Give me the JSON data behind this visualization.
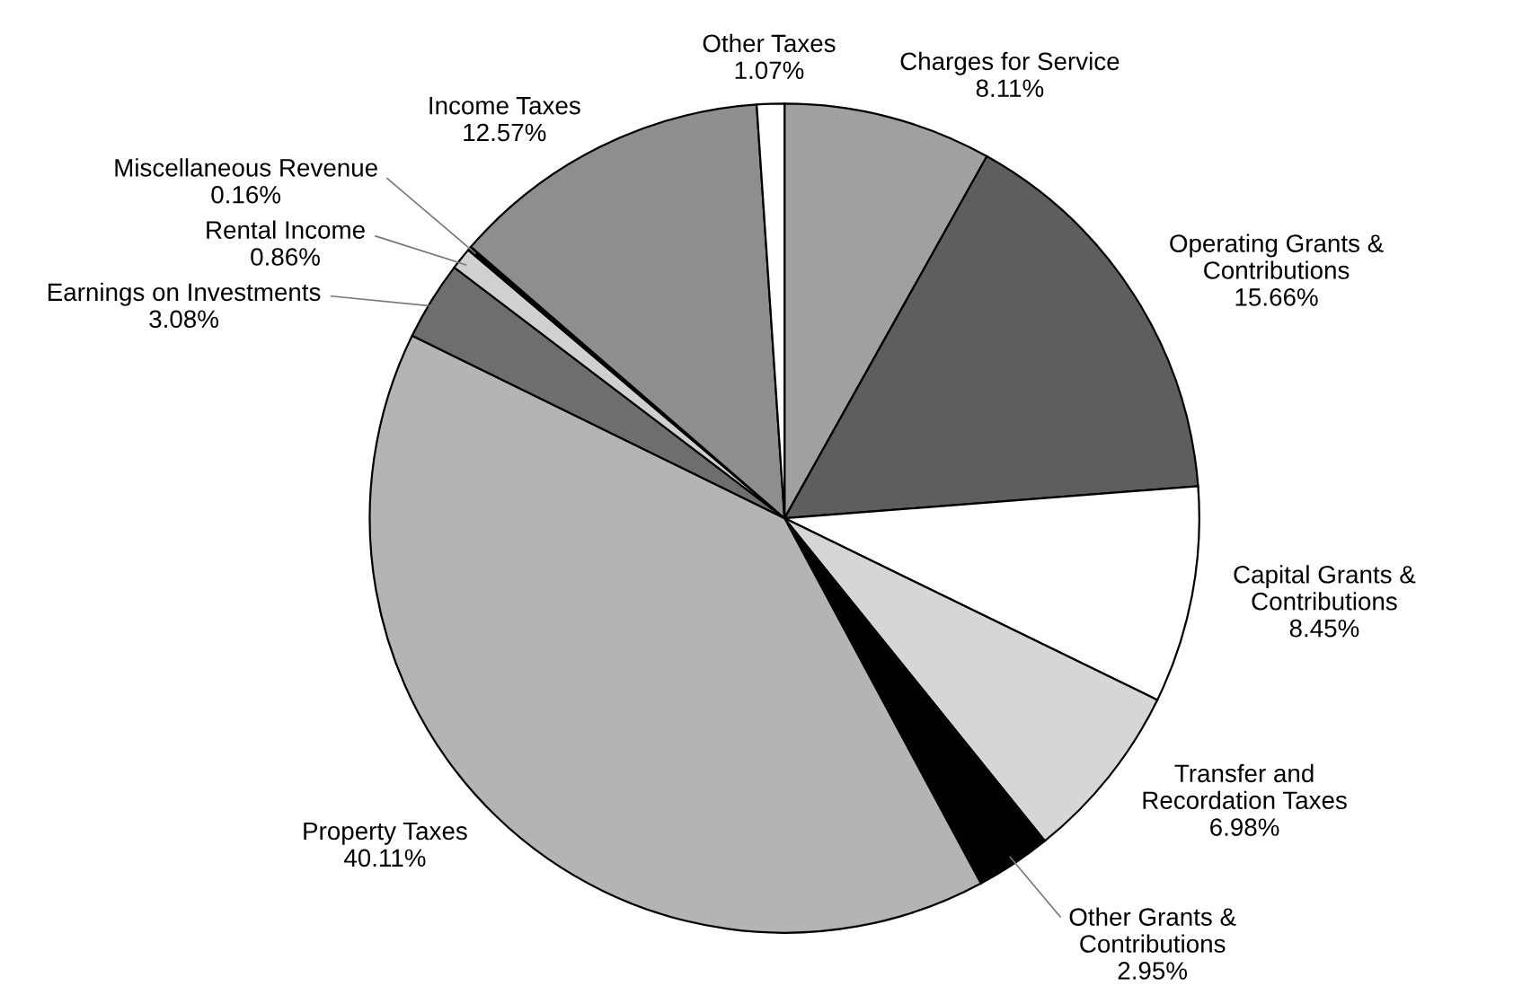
{
  "chart_data": {
    "type": "pie",
    "categories": [
      "Charges for Service",
      "Operating Grants & Contributions",
      "Capital Grants & Contributions",
      "Transfer and Recordation Taxes",
      "Other Grants & Contributions",
      "Property Taxes",
      "Earnings on Investments",
      "Rental Income",
      "Miscellaneous Revenue",
      "Income Taxes",
      "Other Taxes"
    ],
    "values": [
      8.11,
      15.66,
      8.45,
      6.98,
      2.95,
      40.11,
      3.08,
      0.86,
      0.16,
      12.57,
      1.07
    ],
    "value_labels": [
      "8.11%",
      "15.66%",
      "8.45%",
      "6.98%",
      "2.95%",
      "40.11%",
      "3.08%",
      "0.86%",
      "0.16%",
      "12.57%",
      "1.07%"
    ],
    "colors": [
      "#a0a0a0",
      "#5e5e5e",
      "#ffffff",
      "#d6d6d6",
      "#000000",
      "#b4b4b4",
      "#6e6e6e",
      "#d0d0d0",
      "#000000",
      "#8e8e8e",
      "#ffffff"
    ],
    "legend": false
  }
}
